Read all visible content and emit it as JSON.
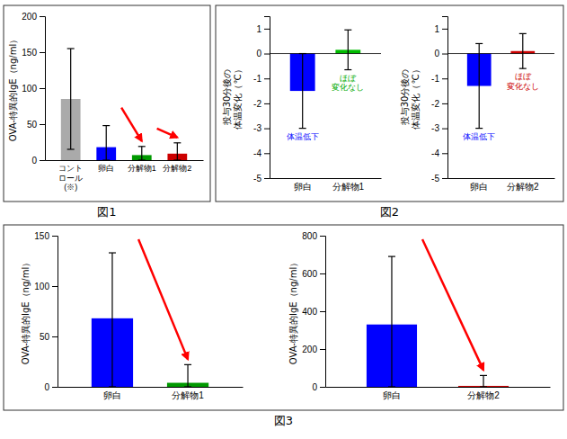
{
  "chart_data": [
    {
      "type": "bar",
      "title": "図1",
      "categories": [
        "コント\nロール\n(※)",
        "卵白",
        "分解物1",
        "分解物2"
      ],
      "values": [
        85,
        18,
        7,
        9
      ],
      "errors_plus": [
        70,
        30,
        12,
        15
      ],
      "errors_minus": [
        70,
        18,
        7,
        9
      ],
      "colors": [
        "#aaaaaa",
        "#0000ff",
        "#009900",
        "#cc0000"
      ],
      "ylabel": "OVA-特異的IgE（ng/ml）",
      "ylim": [
        0,
        200
      ],
      "yticks": [
        0,
        50,
        100,
        150,
        200
      ],
      "annotations": [
        {
          "from": "卵白",
          "to": "分解物1",
          "color": "red"
        },
        {
          "from": "分解物1",
          "to": "分解物2",
          "color": "red"
        }
      ]
    },
    {
      "type": "bar",
      "title": "図2",
      "categories": [
        "卵白",
        "分解物1"
      ],
      "values": [
        -1.5,
        0.15
      ],
      "errors": [
        1.5,
        0.8
      ],
      "colors": [
        "#0000ff",
        "#00bb00"
      ],
      "ylabel": "投与30分後の\n体温変化（℃）",
      "ylim": [
        -5,
        1.5
      ],
      "yticks": [
        -5,
        -4,
        -3,
        -2,
        -1,
        0,
        1
      ],
      "annotations": [
        {
          "text": "体温低下",
          "category": "卵白",
          "color": "#0000ff"
        },
        {
          "text": "ほぼ\n変化なし",
          "category": "分解物1",
          "color": "#00aa00"
        }
      ]
    },
    {
      "type": "bar",
      "categories": [
        "卵白",
        "分解物2"
      ],
      "values": [
        -1.3,
        0.1
      ],
      "errors": [
        1.7,
        0.7
      ],
      "colors": [
        "#0000ff",
        "#cc0000"
      ],
      "ylabel": "投与30分後の\n体温変化（℃）",
      "ylim": [
        -5,
        1.5
      ],
      "yticks": [
        -5,
        -4,
        -3,
        -2,
        -1,
        0,
        1
      ],
      "annotations": [
        {
          "text": "体温低下",
          "category": "卵白",
          "color": "#0000ff"
        },
        {
          "text": "ほぼ\n変化なし",
          "category": "分解物2",
          "color": "#cc0000"
        }
      ]
    },
    {
      "type": "bar",
      "title": "図3",
      "categories": [
        "卵白",
        "分解物1"
      ],
      "values": [
        68,
        4
      ],
      "errors_plus": [
        65,
        18
      ],
      "errors_minus": [
        68,
        4
      ],
      "colors": [
        "#0000ff",
        "#009900"
      ],
      "ylabel": "OVA-特異的IgE（ng/ml）",
      "ylim": [
        0,
        150
      ],
      "yticks": [
        0,
        50,
        100,
        150
      ],
      "annotations": [
        {
          "from": "卵白",
          "to": "分解物1",
          "color": "red"
        }
      ]
    },
    {
      "type": "bar",
      "categories": [
        "卵白",
        "分解物2"
      ],
      "values": [
        330,
        5
      ],
      "errors_plus": [
        360,
        55
      ],
      "errors_minus": [
        330,
        5
      ],
      "colors": [
        "#0000ff",
        "#cc0000"
      ],
      "ylabel": "OVA-特異的IgE（ng/ml）",
      "ylim": [
        0,
        800
      ],
      "yticks": [
        0,
        200,
        400,
        600,
        800
      ],
      "annotations": [
        {
          "from": "卵白",
          "to": "分解物2",
          "color": "red"
        }
      ]
    }
  ]
}
